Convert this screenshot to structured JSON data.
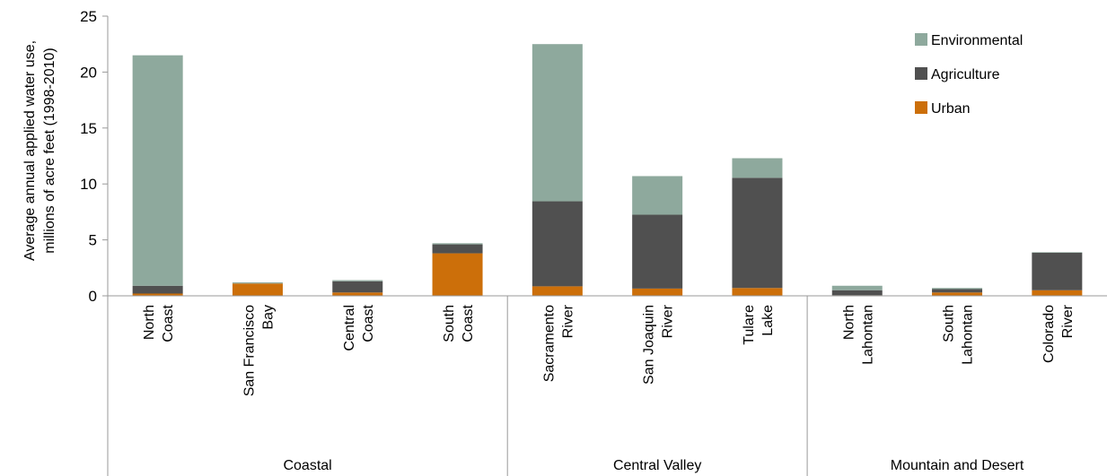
{
  "chart_data": {
    "type": "bar",
    "stacked": true,
    "ylabel_lines": [
      "Average annual applied water use,",
      "millions of acre feet (1998-2010)"
    ],
    "ylim": [
      0,
      25
    ],
    "yticks": [
      "0",
      "5",
      "10",
      "15",
      "20",
      "25"
    ],
    "legend_position": "top-right",
    "categories": [
      [
        "North",
        "Coast"
      ],
      [
        "San Francisco",
        "Bay"
      ],
      [
        "Central",
        "Coast"
      ],
      [
        "South",
        "Coast"
      ],
      [
        "Sacramento",
        "River"
      ],
      [
        "San Joaquin",
        "River"
      ],
      [
        "Tulare",
        "Lake"
      ],
      [
        "North",
        "Lahontan"
      ],
      [
        "South",
        "Lahontan"
      ],
      [
        "Colorado",
        "River"
      ]
    ],
    "groups": [
      {
        "label": "Coastal",
        "count": 4
      },
      {
        "label": "Central Valley",
        "count": 3
      },
      {
        "label": "Mountain and Desert",
        "count": 3
      }
    ],
    "series": [
      {
        "name": "Urban",
        "color": "#cc6f0a",
        "values": [
          0.2,
          1.1,
          0.3,
          3.8,
          0.85,
          0.65,
          0.7,
          0.05,
          0.3,
          0.5
        ]
      },
      {
        "name": "Agriculture",
        "color": "#505050",
        "values": [
          0.7,
          0.0,
          1.0,
          0.8,
          7.6,
          6.6,
          9.85,
          0.45,
          0.3,
          3.35
        ]
      },
      {
        "name": "Environmental",
        "color": "#8ea99d",
        "values": [
          20.6,
          0.1,
          0.1,
          0.1,
          14.05,
          3.45,
          1.75,
          0.4,
          0.1,
          0.05
        ]
      }
    ],
    "legend_order": [
      "Environmental",
      "Agriculture",
      "Urban"
    ]
  }
}
